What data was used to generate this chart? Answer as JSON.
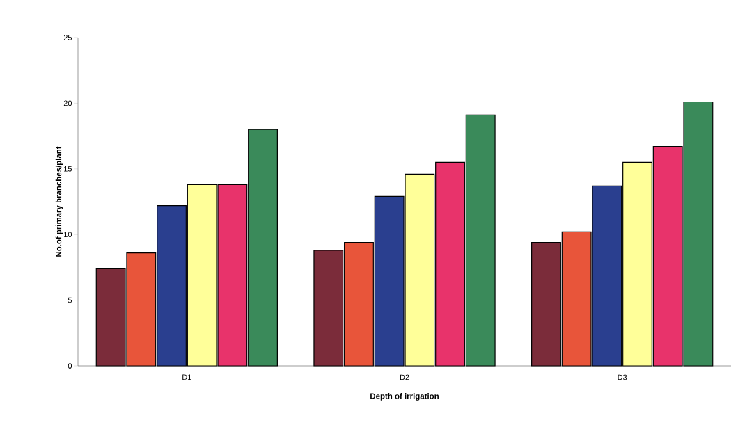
{
  "chart_data": {
    "type": "bar",
    "xlabel": "Depth of irrigation",
    "ylabel": "No.of primary branches/plant",
    "categories": [
      "D1",
      "D2",
      "D3"
    ],
    "series": [
      {
        "color": "#7b2c3a",
        "values": [
          7.4,
          8.8,
          9.4
        ]
      },
      {
        "color": "#e8553a",
        "values": [
          8.6,
          9.4,
          10.2
        ]
      },
      {
        "color": "#2a3f8f",
        "values": [
          12.2,
          12.9,
          13.7
        ]
      },
      {
        "color": "#ffff99",
        "values": [
          13.8,
          14.6,
          15.5
        ]
      },
      {
        "color": "#e8336b",
        "values": [
          13.8,
          15.5,
          16.7
        ]
      },
      {
        "color": "#3a8a5a",
        "values": [
          18.0,
          19.1,
          20.1
        ]
      }
    ],
    "ylim": [
      0,
      25
    ],
    "yticks": [
      0,
      5,
      10,
      15,
      20,
      25
    ]
  }
}
